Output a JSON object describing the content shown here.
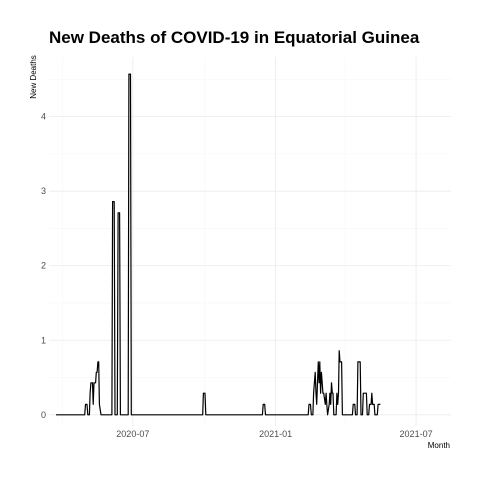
{
  "chart_data": {
    "type": "line",
    "title": "New Deaths of COVID-19 in Equatorial Guinea",
    "xlabel": "Month",
    "ylabel": "New Deaths",
    "x_axis": {
      "start": "2020-03-15",
      "end": "2021-08-15",
      "ticks": [
        {
          "date": "2020-07-01",
          "label": "2020-07"
        },
        {
          "date": "2021-01-01",
          "label": "2021-01"
        },
        {
          "date": "2021-07-01",
          "label": "2021-07"
        }
      ],
      "minor_ticks": [
        "2020-04-01",
        "2020-10-01",
        "2021-04-01"
      ]
    },
    "y_axis": {
      "ylim": [
        -0.15,
        4.8
      ],
      "ticks": [
        0,
        1,
        2,
        3,
        4
      ],
      "minor_ticks": [
        0.5,
        1.5,
        2.5,
        3.5,
        4.5
      ]
    },
    "grid": true,
    "series": [
      {
        "name": "New Deaths",
        "color": "#000000",
        "points": [
          [
            "2020-03-24",
            0
          ],
          [
            "2020-04-30",
            0
          ],
          [
            "2020-05-01",
            0.14
          ],
          [
            "2020-05-03",
            0.14
          ],
          [
            "2020-05-04",
            0
          ],
          [
            "2020-05-06",
            0
          ],
          [
            "2020-05-07",
            0.29
          ],
          [
            "2020-05-08",
            0.43
          ],
          [
            "2020-05-10",
            0.43
          ],
          [
            "2020-05-11",
            0.14
          ],
          [
            "2020-05-12",
            0.43
          ],
          [
            "2020-05-14",
            0.43
          ],
          [
            "2020-05-15",
            0.57
          ],
          [
            "2020-05-16",
            0.57
          ],
          [
            "2020-05-17",
            0.71
          ],
          [
            "2020-05-18",
            0.71
          ],
          [
            "2020-05-19",
            0.14
          ],
          [
            "2020-05-21",
            0
          ],
          [
            "2020-06-04",
            0
          ],
          [
            "2020-06-05",
            2.86
          ],
          [
            "2020-06-07",
            2.86
          ],
          [
            "2020-06-08",
            0
          ],
          [
            "2020-06-11",
            0
          ],
          [
            "2020-06-12",
            2.71
          ],
          [
            "2020-06-14",
            2.71
          ],
          [
            "2020-06-15",
            0
          ],
          [
            "2020-06-25",
            0
          ],
          [
            "2020-06-26",
            4.57
          ],
          [
            "2020-06-28",
            4.57
          ],
          [
            "2020-06-29",
            0
          ],
          [
            "2020-09-29",
            0
          ],
          [
            "2020-09-30",
            0.29
          ],
          [
            "2020-10-02",
            0.29
          ],
          [
            "2020-10-03",
            0
          ],
          [
            "2020-12-15",
            0
          ],
          [
            "2020-12-16",
            0.14
          ],
          [
            "2020-12-18",
            0.14
          ],
          [
            "2020-12-19",
            0
          ],
          [
            "2021-02-12",
            0
          ],
          [
            "2021-02-13",
            0.14
          ],
          [
            "2021-02-15",
            0.14
          ],
          [
            "2021-02-16",
            0
          ],
          [
            "2021-02-18",
            0
          ],
          [
            "2021-02-19",
            0.29
          ],
          [
            "2021-02-21",
            0.57
          ],
          [
            "2021-02-22",
            0.29
          ],
          [
            "2021-02-23",
            0.14
          ],
          [
            "2021-02-24",
            0.43
          ],
          [
            "2021-02-25",
            0.71
          ],
          [
            "2021-02-26",
            0.43
          ],
          [
            "2021-02-27",
            0.71
          ],
          [
            "2021-02-28",
            0.29
          ],
          [
            "2021-03-01",
            0.57
          ],
          [
            "2021-03-02",
            0.43
          ],
          [
            "2021-03-03",
            0.29
          ],
          [
            "2021-03-04",
            0.29
          ],
          [
            "2021-03-06",
            0.14
          ],
          [
            "2021-03-07",
            0.29
          ],
          [
            "2021-03-08",
            0.14
          ],
          [
            "2021-03-09",
            0
          ],
          [
            "2021-03-11",
            0.14
          ],
          [
            "2021-03-12",
            0.29
          ],
          [
            "2021-03-13",
            0.14
          ],
          [
            "2021-03-14",
            0.43
          ],
          [
            "2021-03-15",
            0.29
          ],
          [
            "2021-03-16",
            0.29
          ],
          [
            "2021-03-17",
            0
          ],
          [
            "2021-03-20",
            0
          ],
          [
            "2021-03-21",
            0.29
          ],
          [
            "2021-03-22",
            0.14
          ],
          [
            "2021-03-23",
            0.29
          ],
          [
            "2021-03-24",
            0.86
          ],
          [
            "2021-03-25",
            0.71
          ],
          [
            "2021-03-27",
            0.71
          ],
          [
            "2021-03-28",
            0
          ],
          [
            "2021-04-10",
            0
          ],
          [
            "2021-04-11",
            0.14
          ],
          [
            "2021-04-13",
            0.14
          ],
          [
            "2021-04-14",
            0
          ],
          [
            "2021-04-16",
            0
          ],
          [
            "2021-04-17",
            0.71
          ],
          [
            "2021-04-20",
            0.71
          ],
          [
            "2021-04-21",
            0
          ],
          [
            "2021-04-23",
            0
          ],
          [
            "2021-04-24",
            0.29
          ],
          [
            "2021-04-28",
            0.29
          ],
          [
            "2021-04-29",
            0
          ],
          [
            "2021-05-01",
            0
          ],
          [
            "2021-05-02",
            0.14
          ],
          [
            "2021-05-04",
            0.14
          ],
          [
            "2021-05-05",
            0.29
          ],
          [
            "2021-05-06",
            0.14
          ],
          [
            "2021-05-08",
            0.14
          ],
          [
            "2021-05-09",
            0
          ],
          [
            "2021-05-12",
            0
          ],
          [
            "2021-05-13",
            0.14
          ],
          [
            "2021-05-16",
            0.14
          ]
        ]
      }
    ]
  }
}
